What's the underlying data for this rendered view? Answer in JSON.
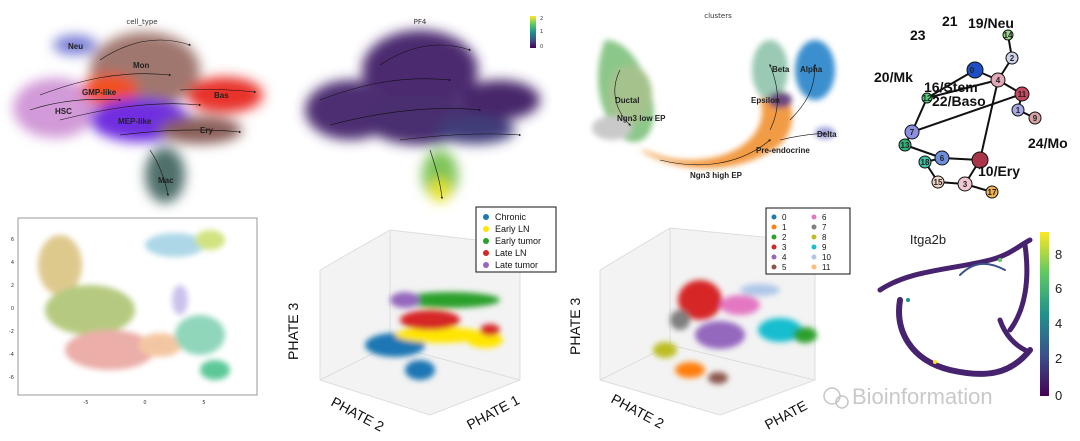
{
  "panels": {
    "cell_type": {
      "title": "cell_type",
      "labels": [
        {
          "id": "neu",
          "text": "Neu"
        },
        {
          "id": "mon",
          "text": "Mon"
        },
        {
          "id": "gmp",
          "text": "GMP-like"
        },
        {
          "id": "hsc",
          "text": "HSC"
        },
        {
          "id": "mep",
          "text": "MEP-like"
        },
        {
          "id": "bas",
          "text": "Bas"
        },
        {
          "id": "ery",
          "text": "Ery"
        },
        {
          "id": "mac",
          "text": "Mac"
        }
      ]
    },
    "pf4": {
      "title": "PF4",
      "colorbar_ticks": [
        "2",
        "1",
        "0"
      ]
    },
    "clusters": {
      "title": "clusters",
      "labels": [
        {
          "id": "ductal",
          "text": "Ductal"
        },
        {
          "id": "ngn3low",
          "text": "Ngn3 low EP"
        },
        {
          "id": "ngn3high",
          "text": "Ngn3 high EP"
        },
        {
          "id": "preendo",
          "text": "Pre-endocrine"
        },
        {
          "id": "epsilon",
          "text": "Epsilon"
        },
        {
          "id": "alpha",
          "text": "Alpha"
        },
        {
          "id": "beta",
          "text": "Beta"
        },
        {
          "id": "delta",
          "text": "Delta"
        }
      ]
    },
    "graph": {
      "nodes": [
        {
          "id": "n0",
          "text": "0"
        },
        {
          "id": "n1",
          "text": "1"
        },
        {
          "id": "n2",
          "text": "2"
        },
        {
          "id": "n3",
          "text": "3"
        },
        {
          "id": "n4",
          "text": "4"
        },
        {
          "id": "n6",
          "text": "6"
        },
        {
          "id": "n7",
          "text": "7"
        },
        {
          "id": "n9",
          "text": "9"
        },
        {
          "id": "n11",
          "text": "11"
        },
        {
          "id": "n12",
          "text": "12"
        },
        {
          "id": "n13",
          "text": "13"
        },
        {
          "id": "n14",
          "text": "14"
        },
        {
          "id": "n15",
          "text": "15"
        },
        {
          "id": "n17",
          "text": "17"
        },
        {
          "id": "n18",
          "text": "18"
        }
      ],
      "labels": [
        {
          "id": "l21",
          "text": "21"
        },
        {
          "id": "l19",
          "text": "19/Neu"
        },
        {
          "id": "l23",
          "text": "23"
        },
        {
          "id": "l20",
          "text": "20/Mk"
        },
        {
          "id": "l16",
          "text": "16/Stem"
        },
        {
          "id": "l22",
          "text": "22/Baso"
        },
        {
          "id": "l24",
          "text": "24/Mo"
        },
        {
          "id": "l10",
          "text": "10/Ery"
        }
      ]
    },
    "velocity_grid": {
      "x_ticks": [
        "-5",
        "0",
        "5"
      ],
      "y_ticks": [
        "6",
        "4",
        "2",
        "0",
        "-2",
        "-4",
        "-6"
      ]
    },
    "phate_a": {
      "legend": [
        "Chronic",
        "Early LN",
        "Early tumor",
        "Late LN",
        "Late tumor"
      ],
      "axis_labels": {
        "x": "PHATE 1",
        "y": "PHATE 2",
        "z": "PHATE 3"
      },
      "colors": [
        "#1f77b4",
        "#ffe600",
        "#2ca02c",
        "#d62728",
        "#9467bd"
      ]
    },
    "phate_b": {
      "legend": [
        "0",
        "1",
        "2",
        "3",
        "4",
        "5",
        "6",
        "7",
        "8",
        "9",
        "10",
        "11"
      ],
      "axis_labels": {
        "x": "PHATE",
        "y": "PHATE 2",
        "z": "PHATE 3"
      },
      "colors": [
        "#1f77b4",
        "#ff7f0e",
        "#2ca02c",
        "#d62728",
        "#9467bd",
        "#8c564b",
        "#e377c2",
        "#7f7f7f",
        "#bcbd22",
        "#17becf",
        "#aec7e8",
        "#ffbb78"
      ]
    },
    "itga2b": {
      "title": "Itga2b",
      "colorbar_ticks": [
        "8",
        "6",
        "4",
        "2",
        "0"
      ]
    }
  },
  "watermark": "Bioinformation"
}
